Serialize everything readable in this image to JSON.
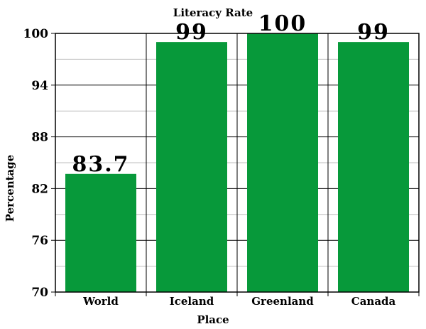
{
  "chart_data": {
    "type": "bar",
    "title": "Literacy Rate",
    "xlabel": "Place",
    "ylabel": "Percentage",
    "categories": [
      "World",
      "Iceland",
      "Greenland",
      "Canada"
    ],
    "values": [
      83.7,
      99,
      100,
      99
    ],
    "value_labels": [
      "83.7",
      "99",
      "100",
      "99"
    ],
    "yticks": [
      70,
      76,
      82,
      88,
      94,
      100
    ],
    "ylim": [
      70,
      100
    ],
    "grid": true,
    "bar_color": "#07993a"
  }
}
